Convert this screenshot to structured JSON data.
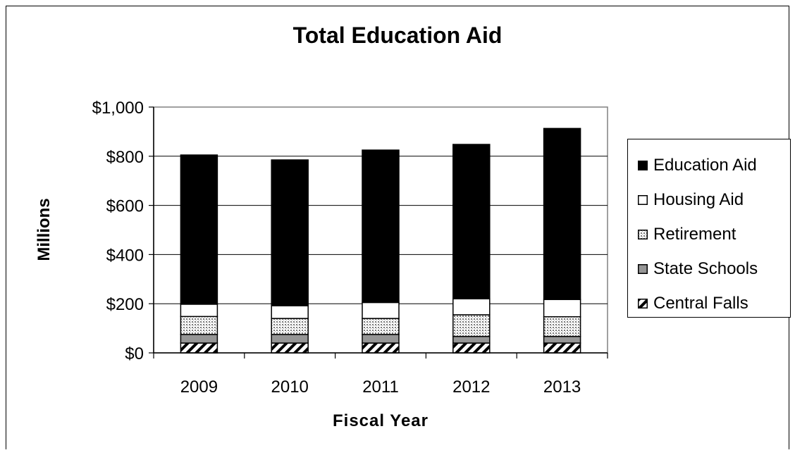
{
  "chart_data": {
    "type": "bar",
    "stacked": true,
    "title": "Total Education Aid",
    "xlabel": "Fiscal Year",
    "ylabel": "Millions",
    "categories": [
      "2009",
      "2010",
      "2011",
      "2012",
      "2013"
    ],
    "ylim": [
      0,
      1000
    ],
    "y_ticks": [
      "$0",
      "$200",
      "$400",
      "$600",
      "$800",
      "$1,000"
    ],
    "grid": "horizontal",
    "legend_position": "right",
    "series": [
      {
        "name": "Central Falls",
        "pattern": "diagonal-hatch",
        "color": "#000000",
        "values": [
          40,
          40,
          40,
          40,
          40
        ]
      },
      {
        "name": "State Schools",
        "pattern": "solid",
        "color": "#969696",
        "values": [
          35,
          35,
          35,
          27,
          27
        ]
      },
      {
        "name": "Retirement",
        "pattern": "dotted",
        "color": "#d4d4d4",
        "values": [
          73,
          65,
          65,
          88,
          80
        ]
      },
      {
        "name": "Housing Aid",
        "pattern": "solid",
        "color": "#ffffff",
        "values": [
          50,
          52,
          65,
          65,
          70
        ]
      },
      {
        "name": "Education Aid",
        "pattern": "solid",
        "color": "#000000",
        "values": [
          607,
          593,
          620,
          628,
          696
        ]
      }
    ]
  }
}
